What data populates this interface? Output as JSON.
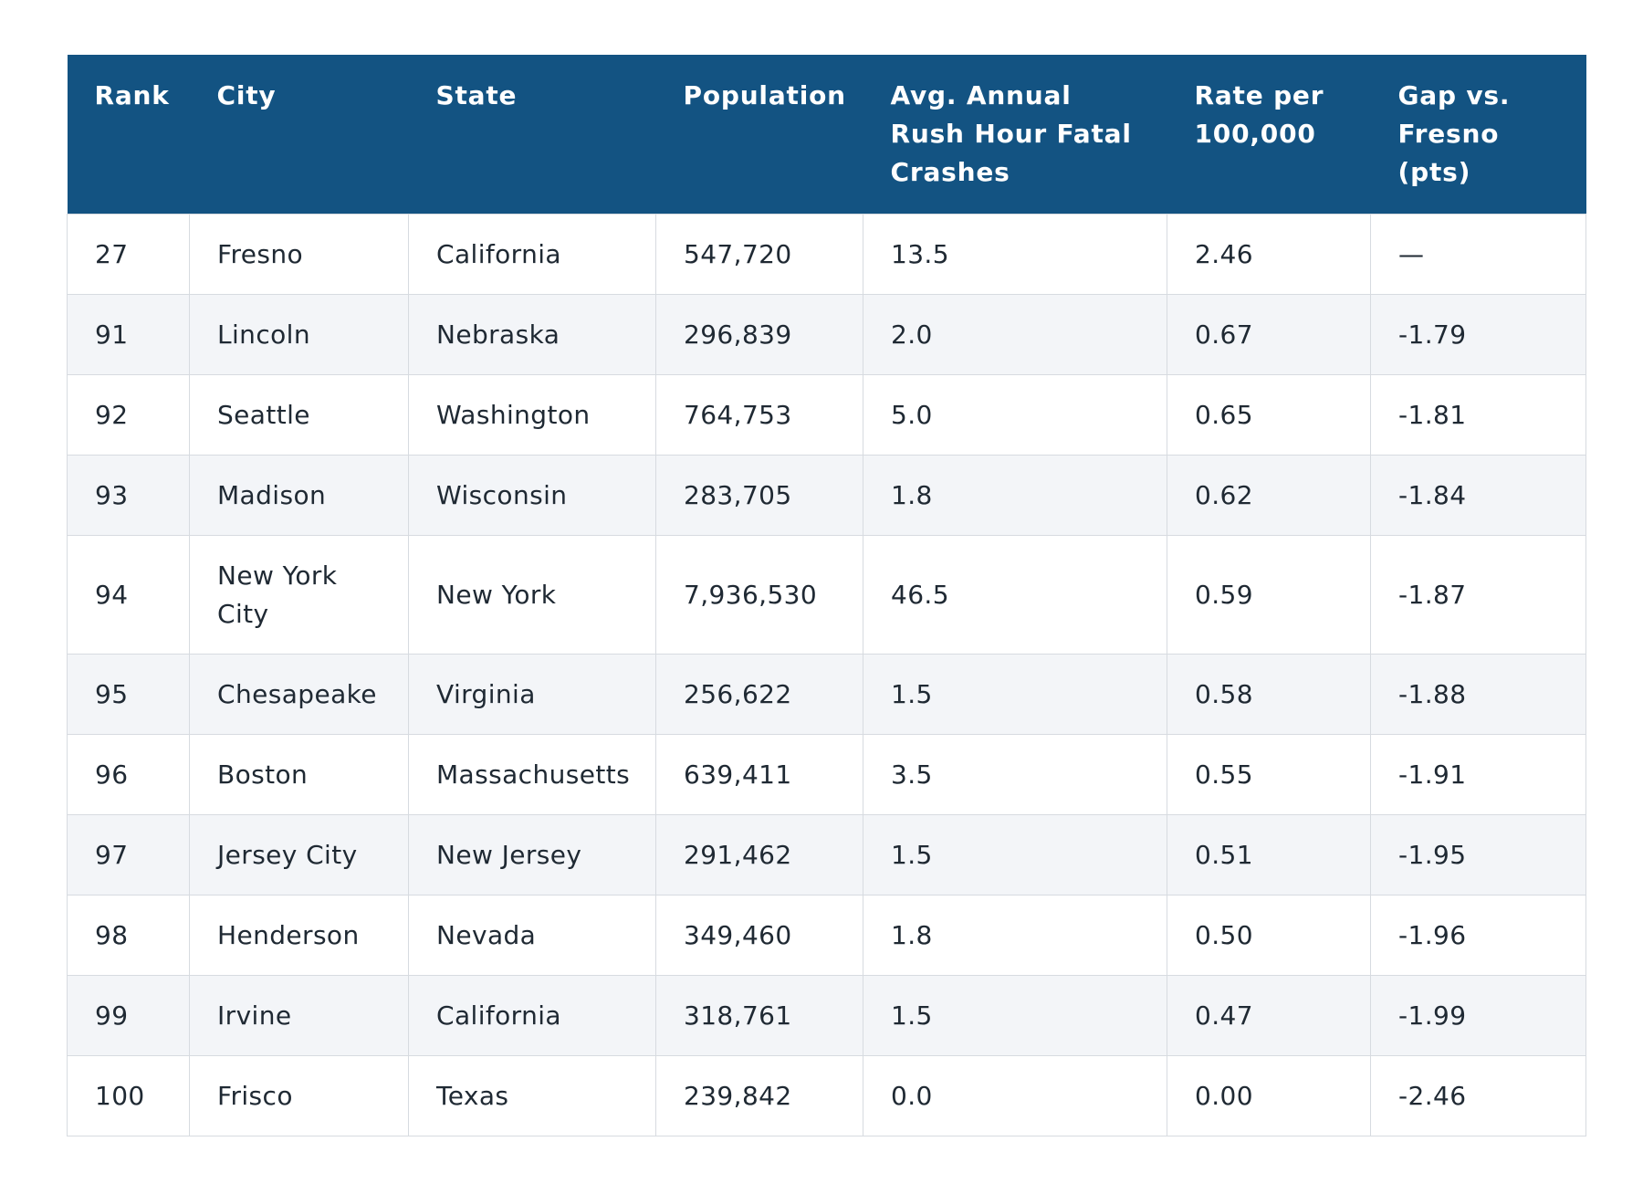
{
  "table": {
    "headers": [
      "Rank",
      "City",
      "State",
      "Population",
      "Avg. Annual Rush Hour Fatal Crashes",
      "Rate per 100,000",
      "Gap vs. Fresno (pts)"
    ],
    "rows": [
      [
        "27",
        "Fresno",
        "California",
        "547,720",
        "13.5",
        "2.46",
        "—"
      ],
      [
        "91",
        "Lincoln",
        "Nebraska",
        "296,839",
        "2.0",
        "0.67",
        "-1.79"
      ],
      [
        "92",
        "Seattle",
        "Washington",
        "764,753",
        "5.0",
        "0.65",
        "-1.81"
      ],
      [
        "93",
        "Madison",
        "Wisconsin",
        "283,705",
        "1.8",
        "0.62",
        "-1.84"
      ],
      [
        "94",
        "New York City",
        "New York",
        "7,936,530",
        "46.5",
        "0.59",
        "-1.87"
      ],
      [
        "95",
        "Chesapeake",
        "Virginia",
        "256,622",
        "1.5",
        "0.58",
        "-1.88"
      ],
      [
        "96",
        "Boston",
        "Massachusetts",
        "639,411",
        "3.5",
        "0.55",
        "-1.91"
      ],
      [
        "97",
        "Jersey City",
        "New Jersey",
        "291,462",
        "1.5",
        "0.51",
        "-1.95"
      ],
      [
        "98",
        "Henderson",
        "Nevada",
        "349,460",
        "1.8",
        "0.50",
        "-1.96"
      ],
      [
        "99",
        "Irvine",
        "California",
        "318,761",
        "1.5",
        "0.47",
        "-1.99"
      ],
      [
        "100",
        "Frisco",
        "Texas",
        "239,842",
        "0.0",
        "0.00",
        "-2.46"
      ]
    ]
  },
  "colors": {
    "header_bg": "#135382",
    "header_text": "#ffffff",
    "row_alt_bg": "#f3f5f8",
    "border": "#d7dbe0"
  }
}
